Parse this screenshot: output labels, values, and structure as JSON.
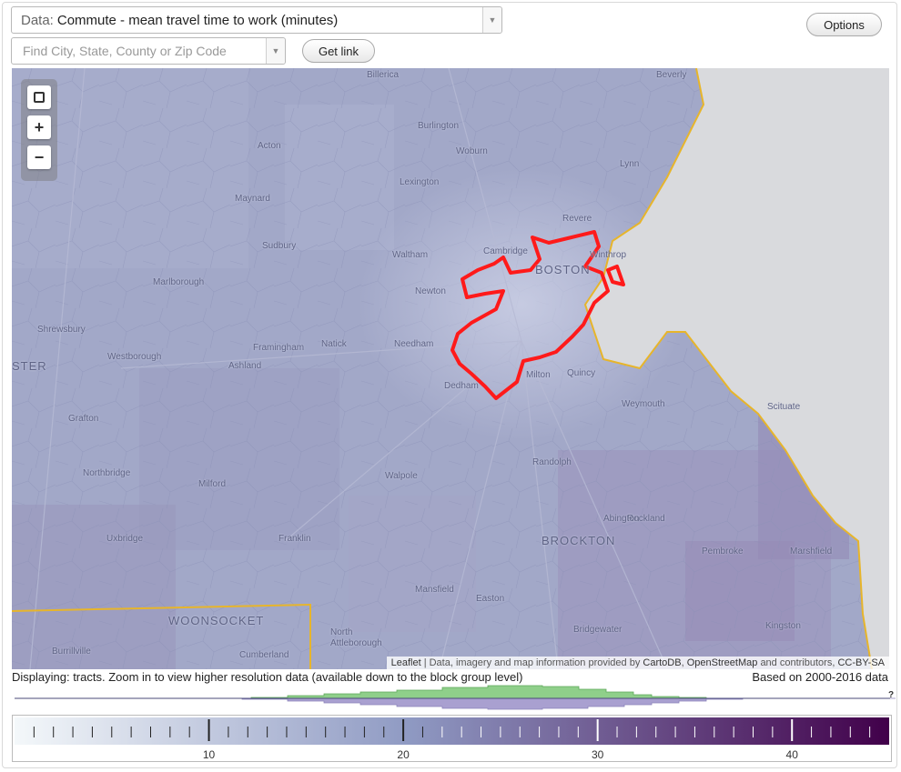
{
  "data_selector": {
    "prefix": "Data:",
    "value": "Commute - mean travel time to work (minutes)"
  },
  "search": {
    "placeholder": "Find City, State, County or Zip Code"
  },
  "buttons": {
    "get_link": "Get link",
    "options": "Options"
  },
  "map": {
    "zoom_controls": {
      "fit": "fit-bounds",
      "zoom_in": "+",
      "zoom_out": "−"
    },
    "places": [
      {
        "name": "Billerica",
        "size": "small"
      },
      {
        "name": "Beverly",
        "size": "small"
      },
      {
        "name": "Burlington",
        "size": "small"
      },
      {
        "name": "Acton",
        "size": "small"
      },
      {
        "name": "Woburn",
        "size": "small"
      },
      {
        "name": "Lynn",
        "size": "small"
      },
      {
        "name": "Lexington",
        "size": "small"
      },
      {
        "name": "Maynard",
        "size": "small"
      },
      {
        "name": "Revere",
        "size": "small"
      },
      {
        "name": "Sudbury",
        "size": "small"
      },
      {
        "name": "Waltham",
        "size": "small"
      },
      {
        "name": "Cambridge",
        "size": "small"
      },
      {
        "name": "Winthrop",
        "size": "small"
      },
      {
        "name": "BOSTON",
        "size": "big"
      },
      {
        "name": "Marlborough",
        "size": "small"
      },
      {
        "name": "Newton",
        "size": "small"
      },
      {
        "name": "Shrewsbury",
        "size": "small"
      },
      {
        "name": "Framingham",
        "size": "small"
      },
      {
        "name": "Natick",
        "size": "small"
      },
      {
        "name": "Needham",
        "size": "small"
      },
      {
        "name": "STER",
        "size": "big"
      },
      {
        "name": "Westborough",
        "size": "small"
      },
      {
        "name": "Ashland",
        "size": "small"
      },
      {
        "name": "Milton",
        "size": "small"
      },
      {
        "name": "Quincy",
        "size": "small"
      },
      {
        "name": "Dedham",
        "size": "small"
      },
      {
        "name": "Weymouth",
        "size": "small"
      },
      {
        "name": "Grafton",
        "size": "small"
      },
      {
        "name": "Scituate",
        "size": "small"
      },
      {
        "name": "Randolph",
        "size": "small"
      },
      {
        "name": "Northbridge",
        "size": "small"
      },
      {
        "name": "Milford",
        "size": "small"
      },
      {
        "name": "Walpole",
        "size": "small"
      },
      {
        "name": "Rockland",
        "size": "small"
      },
      {
        "name": "Abington",
        "size": "small"
      },
      {
        "name": "Uxbridge",
        "size": "small"
      },
      {
        "name": "Franklin",
        "size": "small"
      },
      {
        "name": "BROCKTON",
        "size": "big"
      },
      {
        "name": "Pembroke",
        "size": "small"
      },
      {
        "name": "Marshfield",
        "size": "small"
      },
      {
        "name": "Mansfield",
        "size": "small"
      },
      {
        "name": "Easton",
        "size": "small"
      },
      {
        "name": "WOONSOCKET",
        "size": "big"
      },
      {
        "name": "Bridgewater",
        "size": "small"
      },
      {
        "name": "Kingston",
        "size": "small"
      },
      {
        "name": "North",
        "size": "small"
      },
      {
        "name": "Attleborough",
        "size": "small"
      },
      {
        "name": "Cumberland",
        "size": "small"
      },
      {
        "name": "Burrillville",
        "size": "small"
      }
    ],
    "attribution": {
      "leaflet": "Leaflet",
      "text": "| Data, imagery and map information provided by",
      "cartodb": "CartoDB",
      "osm": "OpenStreetMap",
      "and": "and contributors,",
      "license": "CC-BY-SA"
    },
    "colors": {
      "land_base": "#9fa5c6",
      "water": "#d9dadd",
      "coast_line": "#e7b52b",
      "selection": "#ff1a1a"
    }
  },
  "status": {
    "displaying": "Displaying: tracts. Zoom in to view higher resolution data (available down to the block group level)",
    "based_on": "Based on 2000-2016 data",
    "help": "?"
  },
  "legend": {
    "min": 0,
    "max": 45,
    "ticks": [
      {
        "label": "10",
        "value": 10
      },
      {
        "label": "20",
        "value": 20
      },
      {
        "label": "30",
        "value": 30
      },
      {
        "label": "40",
        "value": 40
      }
    ],
    "color_start": "#f4f8fa",
    "color_mid": "#8f9ac3",
    "color_end": "#41004a",
    "histogram_colors": {
      "selection": "#8fcf8a",
      "overall": "#a9a0d0"
    }
  }
}
